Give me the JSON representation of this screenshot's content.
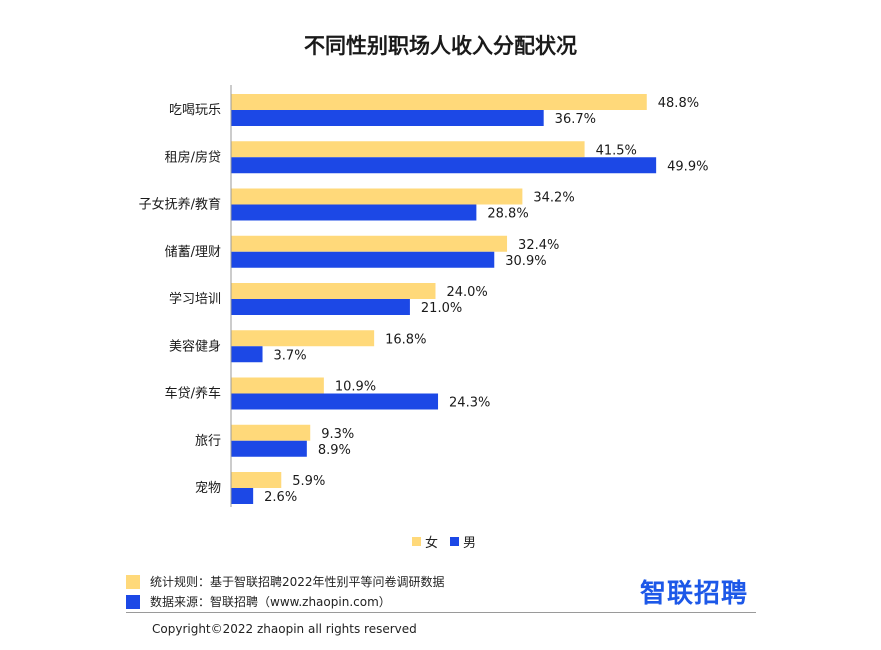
{
  "colors": {
    "female": "#ffd97a",
    "male": "#1c48e6",
    "axis": "#999999",
    "brand": "#1d58e8"
  },
  "chart_data": {
    "type": "bar",
    "orientation": "horizontal",
    "title": "不同性别职场人收入分配状况",
    "categories": [
      "吃喝玩乐",
      "租房/房贷",
      "子女抚养/教育",
      "储蓄/理财",
      "学习培训",
      "美容健身",
      "车贷/养车",
      "旅行",
      "宠物"
    ],
    "series": [
      {
        "name": "女",
        "values": [
          48.8,
          41.5,
          34.2,
          32.4,
          24.0,
          16.8,
          10.9,
          9.3,
          5.9
        ],
        "labels": [
          "48.8%",
          "41.5%",
          "34.2%",
          "32.4%",
          "24.0%",
          "16.8%",
          "10.9%",
          "9.3%",
          "5.9%"
        ]
      },
      {
        "name": "男",
        "values": [
          36.7,
          49.9,
          28.8,
          30.9,
          21.0,
          3.7,
          24.3,
          8.9,
          2.6
        ],
        "labels": [
          "36.7%",
          "49.9%",
          "28.8%",
          "30.9%",
          "21.0%",
          "3.7%",
          "24.3%",
          "8.9%",
          "2.6%"
        ]
      }
    ],
    "xlim": [
      0,
      50
    ],
    "grid": false,
    "legend_position": "bottom-center"
  },
  "legend": {
    "female_label": "女",
    "male_label": "男"
  },
  "footer": {
    "note_stats": "统计规则：基于智联招聘2022年性别平等问卷调研数据",
    "note_source": "数据来源：智联招聘（www.zhaopin.com）",
    "copyright": "Copyright©2022 zhaopin all rights reserved",
    "brand": "智联招聘"
  }
}
